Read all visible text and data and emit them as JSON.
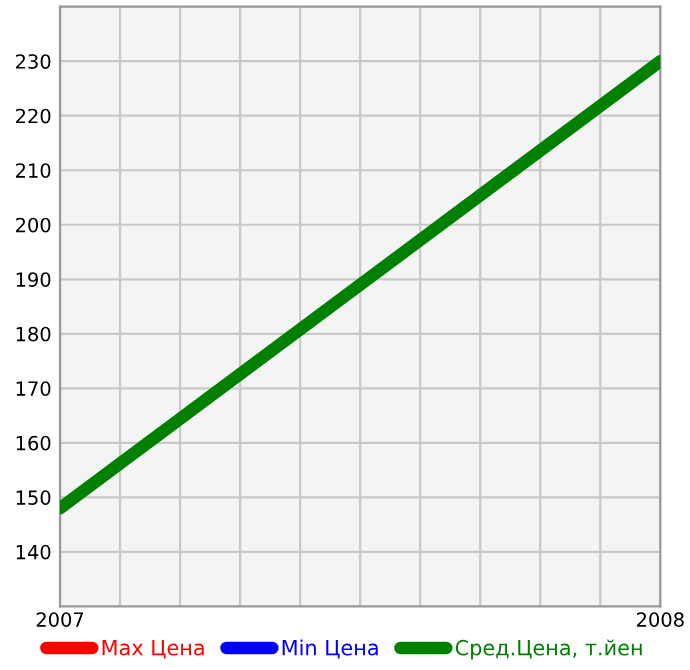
{
  "chart_data": {
    "type": "line",
    "x": [
      2007,
      2008
    ],
    "series": [
      {
        "name": "Max Цена",
        "color": "#ff0000",
        "values": [
          null,
          null
        ]
      },
      {
        "name": "Min Цена",
        "color": "#0000ff",
        "values": [
          null,
          null
        ]
      },
      {
        "name": "Сред.Цена, т.йен",
        "color": "#008000",
        "values": [
          148,
          230
        ]
      }
    ],
    "xlim": [
      2007,
      2008
    ],
    "xticks": [
      2007,
      {
        "value": 2007.1,
        "label": null
      },
      {
        "value": 2007.2,
        "label": null
      },
      {
        "value": 2007.3,
        "label": null
      },
      {
        "value": 2007.4,
        "label": null
      },
      {
        "value": 2007.5,
        "label": null
      },
      {
        "value": 2007.6,
        "label": null
      },
      {
        "value": 2007.7,
        "label": null
      },
      {
        "value": 2007.8,
        "label": null
      },
      {
        "value": 2007.9,
        "label": null
      },
      2008
    ],
    "ylim": [
      130,
      240
    ],
    "yticks": [
      140,
      150,
      160,
      170,
      180,
      190,
      200,
      210,
      220,
      230
    ],
    "grid": true,
    "legend": "bottom",
    "marker": "none",
    "line_style": "solid"
  }
}
